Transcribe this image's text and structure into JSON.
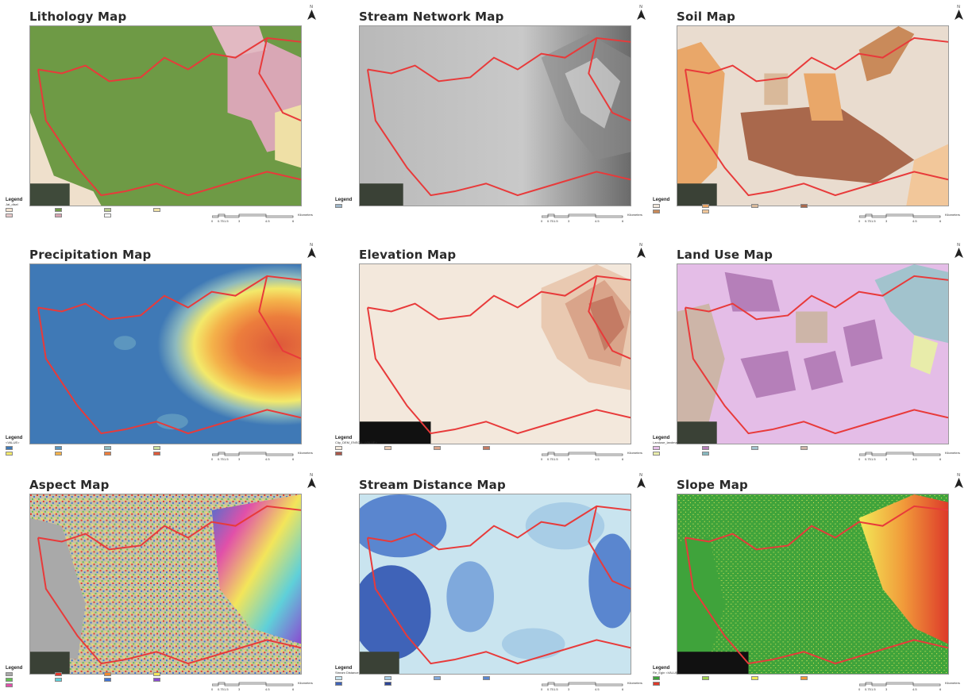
{
  "north_label": "N",
  "maps": [
    {
      "title": "Lithology Map",
      "legend_title": "Legend",
      "legend_sub": "Jat_disel",
      "legend_items": [
        {
          "label": "",
          "color": "#f3e3d0"
        },
        {
          "label": "",
          "color": "#6f9a47"
        },
        {
          "label": "",
          "color": "#b7c88c"
        },
        {
          "label": "",
          "color": "#efe0a6"
        },
        {
          "label": "",
          "color": "#e7c9c9"
        },
        {
          "label": "",
          "color": "#d7a4b1"
        },
        {
          "label": "",
          "color": "#ffffff"
        }
      ],
      "scale": {
        "ticks": [
          "0",
          "0.75",
          "1.5",
          "3",
          "4.5",
          "6"
        ],
        "unit": "Kilometers"
      }
    },
    {
      "title": "Stream Network Map",
      "legend_title": "Legend",
      "legend_sub": "",
      "legend_items": [
        {
          "label": "",
          "color": "#9fb6c9"
        }
      ],
      "scale": {
        "ticks": [
          "0",
          "0.75",
          "1.5",
          "3",
          "4.5",
          "6"
        ],
        "unit": "Kilometers"
      }
    },
    {
      "title": "Soil Map",
      "legend_title": "Legend",
      "legend_sub": "",
      "legend_items": [
        {
          "label": "",
          "color": "#efe5da"
        },
        {
          "label": "",
          "color": "#e9a769"
        },
        {
          "label": "",
          "color": "#d9b99a"
        },
        {
          "label": "",
          "color": "#a9684c"
        },
        {
          "label": "",
          "color": "#c98a5a"
        },
        {
          "label": "",
          "color": "#f2c79a"
        }
      ],
      "scale": {
        "ticks": [
          "0",
          "0.75",
          "1.5",
          "3",
          "4.5",
          "6"
        ],
        "unit": "Kilometers"
      }
    },
    {
      "title": "Precipitation Map",
      "legend_title": "Legend",
      "legend_sub": "<VALUE>",
      "legend_items": [
        {
          "label": "",
          "color": "#3f79b6"
        },
        {
          "label": "",
          "color": "#5c96bf"
        },
        {
          "label": "",
          "color": "#8db9be"
        },
        {
          "label": "",
          "color": "#c8dd9c"
        },
        {
          "label": "",
          "color": "#f3e96a"
        },
        {
          "label": "",
          "color": "#f4b24a"
        },
        {
          "label": "",
          "color": "#ec7d3c"
        },
        {
          "label": "",
          "color": "#dd5a3a"
        }
      ],
      "scale": {
        "ticks": [
          "0",
          "0.75",
          "1.5",
          "3",
          "4.5",
          "6"
        ],
        "unit": "Kilometers"
      }
    },
    {
      "title": "Elevation Map",
      "legend_title": "Legend",
      "legend_sub": "Clip_DEM_ENSON <VALUE>",
      "legend_items": [
        {
          "label": "",
          "color": "#f3e8dc"
        },
        {
          "label": "",
          "color": "#e9c9b1"
        },
        {
          "label": "",
          "color": "#d9a48a"
        },
        {
          "label": "",
          "color": "#c47b64"
        },
        {
          "label": "",
          "color": "#a9584a"
        }
      ],
      "scale": {
        "ticks": [
          "0",
          "0.75",
          "1.5",
          "3",
          "4.5",
          "6"
        ],
        "unit": "Kilometers"
      }
    },
    {
      "title": "Land Use Map",
      "legend_title": "Legend",
      "legend_sub": "Landuse_landmark",
      "legend_items": [
        {
          "label": "",
          "color": "#e4bde7"
        },
        {
          "label": "",
          "color": "#b57fb9"
        },
        {
          "label": "",
          "color": "#a2c3cd"
        },
        {
          "label": "",
          "color": "#cdb5a8"
        },
        {
          "label": "",
          "color": "#e8ecaa"
        },
        {
          "label": "",
          "color": "#86b8c0"
        }
      ],
      "scale": {
        "ticks": [
          "0",
          "0.75",
          "1.5",
          "3",
          "4.5",
          "6"
        ],
        "unit": "Kilometers"
      }
    },
    {
      "title": "Aspect Map",
      "legend_title": "Legend",
      "legend_sub": "",
      "legend_items": [
        {
          "label": "",
          "color": "#a9a9a9"
        },
        {
          "label": "",
          "color": "#e23b2e"
        },
        {
          "label": "",
          "color": "#ef8a31"
        },
        {
          "label": "",
          "color": "#f3e55a"
        },
        {
          "label": "",
          "color": "#62c054"
        },
        {
          "label": "",
          "color": "#5fd0d9"
        },
        {
          "label": "",
          "color": "#3f73d3"
        },
        {
          "label": "",
          "color": "#8a4bd1"
        },
        {
          "label": "",
          "color": "#e150a9"
        }
      ],
      "scale": {
        "ticks": [
          "0",
          "0.75",
          "1.5",
          "3",
          "4.5",
          "6"
        ],
        "unit": "Kilometers"
      }
    },
    {
      "title": "Stream Distance Map",
      "legend_title": "Legend",
      "legend_sub": "Stream Distance",
      "legend_items": [
        {
          "label": "",
          "color": "#c9e4ef"
        },
        {
          "label": "",
          "color": "#a8cde6"
        },
        {
          "label": "",
          "color": "#7fa9dc"
        },
        {
          "label": "",
          "color": "#5a86cf"
        },
        {
          "label": "",
          "color": "#3f63b8"
        },
        {
          "label": "",
          "color": "#2c4596"
        }
      ],
      "scale": {
        "ticks": [
          "0",
          "0.75",
          "1.5",
          "3",
          "4.5",
          "6"
        ],
        "unit": "Kilometers"
      }
    },
    {
      "title": "Slope Map",
      "legend_title": "Legend",
      "legend_sub": "Re_Egin <VALUE>",
      "legend_items": [
        {
          "label": "",
          "color": "#3fa33b"
        },
        {
          "label": "",
          "color": "#9fd050"
        },
        {
          "label": "",
          "color": "#f2ea57"
        },
        {
          "label": "",
          "color": "#f19a3a"
        },
        {
          "label": "",
          "color": "#dd3a2a"
        }
      ],
      "scale": {
        "ticks": [
          "0",
          "0.75",
          "1.5",
          "3",
          "4.5",
          "6"
        ],
        "unit": "Kilometers"
      }
    }
  ]
}
